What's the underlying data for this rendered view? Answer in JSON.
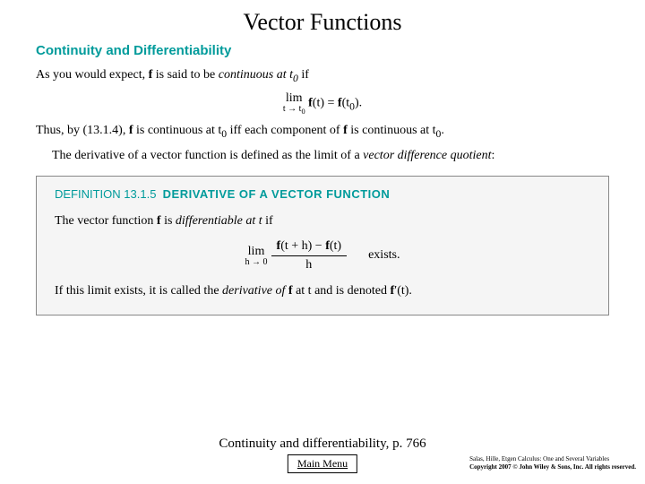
{
  "title": "Vector Functions",
  "section_heading": "Continuity and Differentiability",
  "para1_a": "As you would expect, ",
  "para1_b": "f",
  "para1_c": " is said to be ",
  "para1_d": "continuous at t",
  "para1_e": "0",
  "para1_f": " if",
  "eq1_lim": "lim",
  "eq1_sub": "t → t",
  "eq1_sub_0": "0",
  "eq1_rhs_a": " f",
  "eq1_rhs_b": "(t) = ",
  "eq1_rhs_c": "f",
  "eq1_rhs_d": "(t",
  "eq1_rhs_e": "0",
  "eq1_rhs_f": ").",
  "para2_a": "Thus, by (13.1.4), ",
  "para2_b": "f",
  "para2_c": " is continuous at t",
  "para2_c0": "0",
  "para2_d": " iff each component of ",
  "para2_e": "f",
  "para2_f": " is continuous at t",
  "para2_f0": "0",
  "para2_g": ".",
  "para3_a": "The derivative of a vector function is defined as the limit of a ",
  "para3_b": "vector difference quotient",
  "para3_c": ":",
  "def_label": "DEFINITION 13.1.5",
  "def_title": "DERIVATIVE OF A VECTOR FUNCTION",
  "def_line1_a": "The vector function ",
  "def_line1_b": "f",
  "def_line1_c": " is ",
  "def_line1_d": "differentiable at t",
  "def_line1_e": " if",
  "def_eq_lim": "lim",
  "def_eq_sub": "h → 0",
  "def_eq_num_a": "f",
  "def_eq_num_b": "(t + h) − ",
  "def_eq_num_c": "f",
  "def_eq_num_d": "(t)",
  "def_eq_den": "h",
  "def_eq_exists": "exists.",
  "def_line2_a": "If this limit exists, it is called the ",
  "def_line2_b": "derivative of ",
  "def_line2_c": " f",
  "def_line2_d": " at t and is denoted ",
  "def_line2_e": "f",
  "def_line2_f": "′(t).",
  "footer_caption": "Continuity and differentiability, p. 766",
  "main_menu": "Main Menu",
  "copyright1": "Salas, Hille, Etgen Calculus: One and Several Variables",
  "copyright2": "Copyright 2007 © John Wiley & Sons, Inc.  All rights reserved."
}
